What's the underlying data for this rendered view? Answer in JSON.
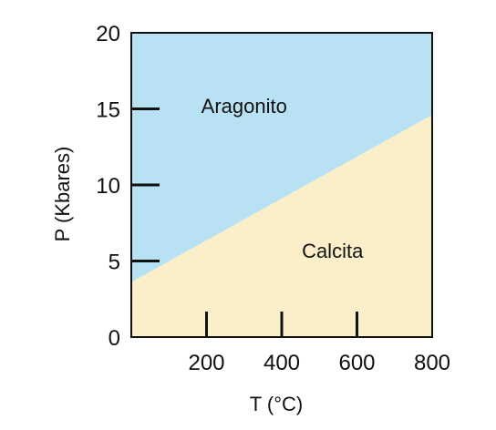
{
  "chart_data": {
    "type": "area",
    "title": "",
    "xlabel": "T (°C)",
    "ylabel": "P (Kbares)",
    "xlim": [
      0,
      800
    ],
    "ylim": [
      0,
      20
    ],
    "x_ticks": [
      200,
      400,
      600,
      800
    ],
    "y_ticks": [
      0,
      5,
      10,
      15,
      20
    ],
    "grid": false,
    "boundary": {
      "x": [
        0,
        800
      ],
      "y": [
        3.6,
        14.6
      ]
    },
    "regions": [
      {
        "name": "Aragonito",
        "side": "above",
        "color": "#b9e1f4",
        "label_at": [
          300,
          15.2
        ]
      },
      {
        "name": "Calcita",
        "side": "below",
        "color": "#fbefc9",
        "label_at": [
          535,
          5.7
        ]
      }
    ]
  }
}
